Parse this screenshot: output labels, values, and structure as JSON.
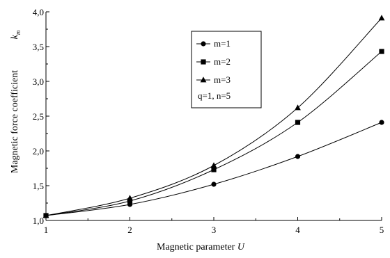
{
  "chart_data": {
    "type": "line",
    "xlabel": "Magnetic parameter",
    "xlabel_var": "U",
    "ylabel": "Magnetic force coefficient",
    "ylabel_sym": "k",
    "ylabel_sub": "m",
    "xlim": [
      1,
      5
    ],
    "ylim": [
      1.0,
      4.0
    ],
    "x_ticks": [
      "1",
      "2",
      "3",
      "4",
      "5"
    ],
    "y_ticks": [
      "1,0",
      "1,5",
      "2,0",
      "2,5",
      "3,0",
      "3,5",
      "4,0"
    ],
    "grid": false,
    "legend_position": "top-center",
    "legend_note": "q=1, n=5",
    "x": [
      1,
      2,
      3,
      4,
      5
    ],
    "series": [
      {
        "name": "m=1",
        "marker": "circle",
        "values": [
          1.07,
          1.23,
          1.52,
          1.92,
          2.41
        ]
      },
      {
        "name": "m=2",
        "marker": "square",
        "values": [
          1.07,
          1.28,
          1.73,
          2.41,
          3.43
        ]
      },
      {
        "name": "m=3",
        "marker": "triangle",
        "values": [
          1.07,
          1.32,
          1.79,
          2.62,
          3.91
        ]
      }
    ]
  }
}
